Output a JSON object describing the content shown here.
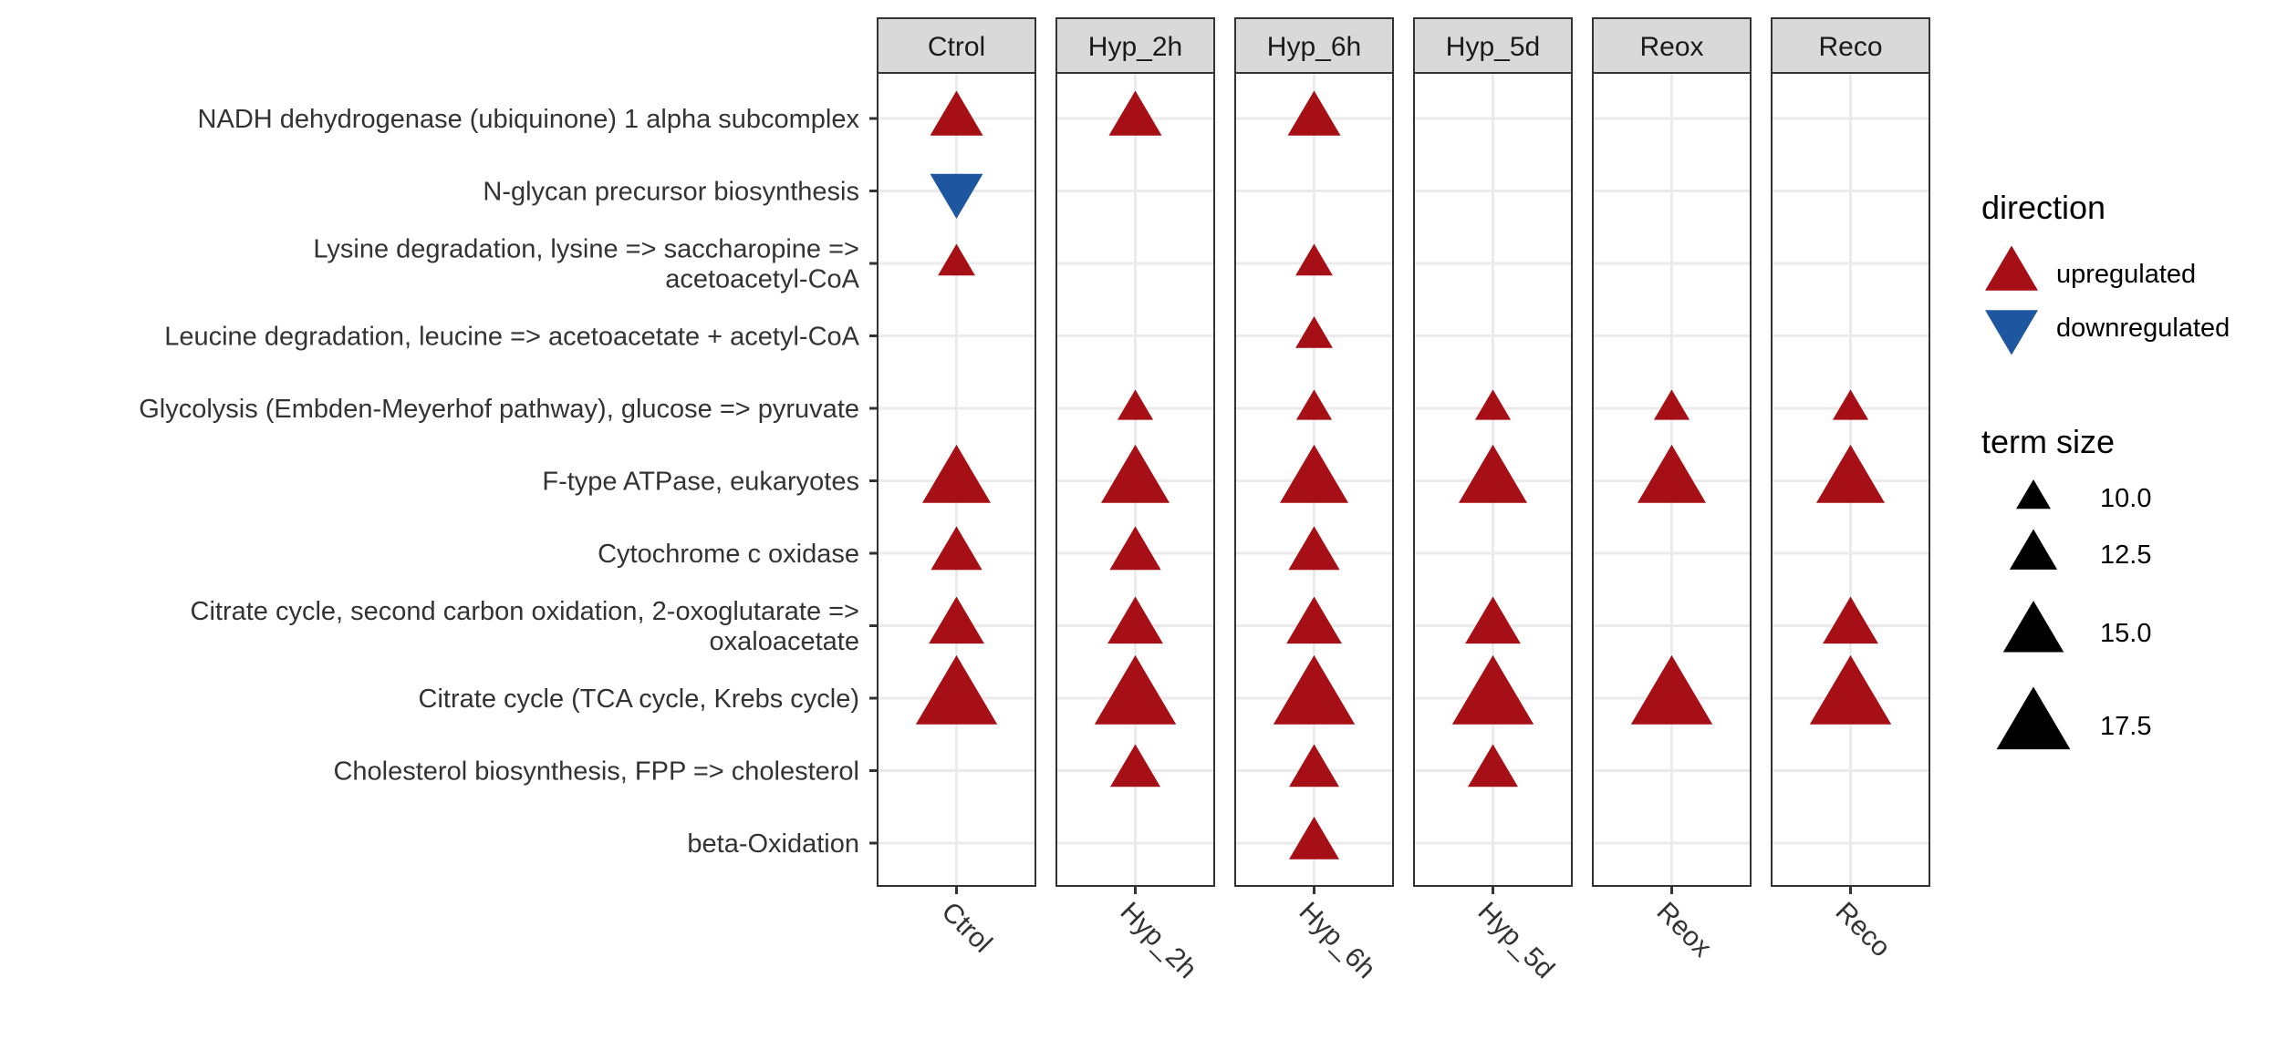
{
  "chart_data": {
    "type": "scatter",
    "panels": [
      "Ctrol",
      "Hyp_2h",
      "Hyp_6h",
      "Hyp_5d",
      "Reox",
      "Reco"
    ],
    "categories": [
      [
        "NADH dehydrogenase (ubiquinone) 1 alpha subcomplex"
      ],
      [
        "N-glycan precursor biosynthesis"
      ],
      [
        "Lysine degradation, lysine => saccharopine =>",
        "acetoacetyl-CoA"
      ],
      [
        "Leucine degradation, leucine => acetoacetate + acetyl-CoA"
      ],
      [
        "Glycolysis (Embden-Meyerhof pathway), glucose => pyruvate"
      ],
      [
        "F-type ATPase, eukaryotes"
      ],
      [
        "Cytochrome c oxidase"
      ],
      [
        "Citrate cycle, second carbon oxidation, 2-oxoglutarate =>",
        "oxaloacetate"
      ],
      [
        "Citrate cycle (TCA cycle, Krebs cycle)"
      ],
      [
        "Cholesterol biosynthesis, FPP => cholesterol"
      ],
      [
        "beta-Oxidation"
      ]
    ],
    "points": [
      {
        "term": 0,
        "panel": "Ctrol",
        "direction": "upregulated",
        "size": 13.5
      },
      {
        "term": 0,
        "panel": "Hyp_2h",
        "direction": "upregulated",
        "size": 13.5
      },
      {
        "term": 0,
        "panel": "Hyp_6h",
        "direction": "upregulated",
        "size": 13.5
      },
      {
        "term": 1,
        "panel": "Ctrol",
        "direction": "downregulated",
        "size": 13.5
      },
      {
        "term": 2,
        "panel": "Ctrol",
        "direction": "upregulated",
        "size": 10.5
      },
      {
        "term": 2,
        "panel": "Hyp_6h",
        "direction": "upregulated",
        "size": 10.5
      },
      {
        "term": 3,
        "panel": "Hyp_6h",
        "direction": "upregulated",
        "size": 10.5
      },
      {
        "term": 4,
        "panel": "Hyp_2h",
        "direction": "upregulated",
        "size": 10.2
      },
      {
        "term": 4,
        "panel": "Hyp_6h",
        "direction": "upregulated",
        "size": 10.2
      },
      {
        "term": 4,
        "panel": "Hyp_5d",
        "direction": "upregulated",
        "size": 10.2
      },
      {
        "term": 4,
        "panel": "Reox",
        "direction": "upregulated",
        "size": 10.2
      },
      {
        "term": 4,
        "panel": "Reco",
        "direction": "upregulated",
        "size": 10.2
      },
      {
        "term": 5,
        "panel": "Ctrol",
        "direction": "upregulated",
        "size": 16.5
      },
      {
        "term": 5,
        "panel": "Hyp_2h",
        "direction": "upregulated",
        "size": 16.5
      },
      {
        "term": 5,
        "panel": "Hyp_6h",
        "direction": "upregulated",
        "size": 16.5
      },
      {
        "term": 5,
        "panel": "Hyp_5d",
        "direction": "upregulated",
        "size": 16.5
      },
      {
        "term": 5,
        "panel": "Reox",
        "direction": "upregulated",
        "size": 16.5
      },
      {
        "term": 5,
        "panel": "Reco",
        "direction": "upregulated",
        "size": 16.5
      },
      {
        "term": 6,
        "panel": "Ctrol",
        "direction": "upregulated",
        "size": 13.2
      },
      {
        "term": 6,
        "panel": "Hyp_2h",
        "direction": "upregulated",
        "size": 13.2
      },
      {
        "term": 6,
        "panel": "Hyp_6h",
        "direction": "upregulated",
        "size": 13.2
      },
      {
        "term": 7,
        "panel": "Ctrol",
        "direction": "upregulated",
        "size": 14.0
      },
      {
        "term": 7,
        "panel": "Hyp_2h",
        "direction": "upregulated",
        "size": 14.0
      },
      {
        "term": 7,
        "panel": "Hyp_6h",
        "direction": "upregulated",
        "size": 14.0
      },
      {
        "term": 7,
        "panel": "Hyp_5d",
        "direction": "upregulated",
        "size": 14.0
      },
      {
        "term": 7,
        "panel": "Reco",
        "direction": "upregulated",
        "size": 14.0
      },
      {
        "term": 8,
        "panel": "Ctrol",
        "direction": "upregulated",
        "size": 19.0
      },
      {
        "term": 8,
        "panel": "Hyp_2h",
        "direction": "upregulated",
        "size": 19.0
      },
      {
        "term": 8,
        "panel": "Hyp_6h",
        "direction": "upregulated",
        "size": 19.0
      },
      {
        "term": 8,
        "panel": "Hyp_5d",
        "direction": "upregulated",
        "size": 19.0
      },
      {
        "term": 8,
        "panel": "Reox",
        "direction": "upregulated",
        "size": 19.0
      },
      {
        "term": 8,
        "panel": "Reco",
        "direction": "upregulated",
        "size": 19.0
      },
      {
        "term": 9,
        "panel": "Hyp_2h",
        "direction": "upregulated",
        "size": 13.0
      },
      {
        "term": 9,
        "panel": "Hyp_6h",
        "direction": "upregulated",
        "size": 13.0
      },
      {
        "term": 9,
        "panel": "Hyp_5d",
        "direction": "upregulated",
        "size": 13.0
      },
      {
        "term": 10,
        "panel": "Hyp_6h",
        "direction": "upregulated",
        "size": 13.0
      }
    ],
    "legend": {
      "direction_title": "direction",
      "direction_items": [
        {
          "label": "upregulated",
          "color": "#A50F15",
          "shape": "triangle-up"
        },
        {
          "label": "downregulated",
          "color": "#1F56A0",
          "shape": "triangle-down"
        }
      ],
      "size_title": "term size",
      "size_items": [
        {
          "label": "10.0",
          "size": 10.0
        },
        {
          "label": "12.5",
          "size": 12.5
        },
        {
          "label": "15.0",
          "size": 15.0
        },
        {
          "label": "17.5",
          "size": 17.5
        }
      ],
      "placement": "right"
    },
    "grid": true,
    "colors": {
      "upregulated": "#A50F15",
      "downregulated": "#1F56A0",
      "strip_fill": "#D9D9D9",
      "grid": "#EBEBEB"
    }
  }
}
